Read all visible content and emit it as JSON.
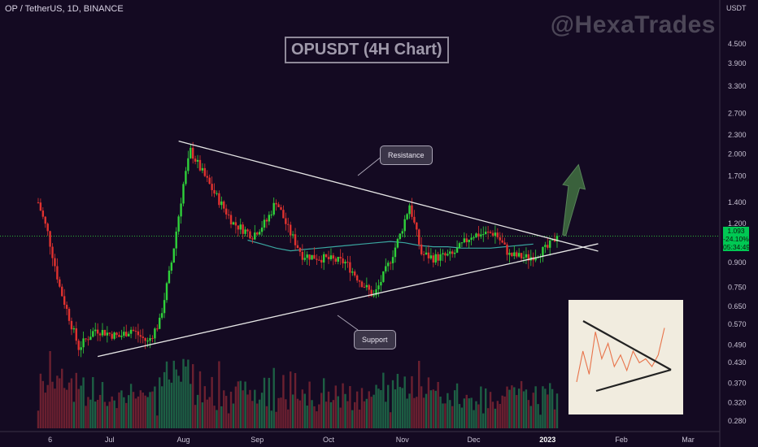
{
  "header": {
    "symbol_line": "OP / TetherUS, 1D, BINANCE"
  },
  "watermark": "@HexaTrades",
  "title": "OPUSDT (4H Chart)",
  "annotations": {
    "resistance": "Resistance",
    "support": "Support"
  },
  "price_badge": {
    "price": "1.093",
    "change": "-24.10%",
    "countdown": "05:34:49"
  },
  "colors": {
    "up": "#2fd13a",
    "down": "#e0322f",
    "ma": "#3aa6a0",
    "trendline": "#e6e6e6",
    "arrow": "#3f6b3f",
    "badge": "#00c853",
    "background": "#140a22"
  },
  "chart_data": {
    "type": "candlestick",
    "y_axis": {
      "currency": "USDT",
      "scale": "log",
      "ticks": [
        "4.500",
        "3.900",
        "3.300",
        "2.700",
        "2.300",
        "2.000",
        "1.700",
        "1.400",
        "1.200",
        "0.900",
        "0.750",
        "0.650",
        "0.570",
        "0.490",
        "0.430",
        "0.370",
        "0.320",
        "0.280"
      ]
    },
    "x_axis": {
      "ticks": [
        "6",
        "Jul",
        "Aug",
        "Sep",
        "Oct",
        "Nov",
        "Dec",
        "2023",
        "Feb",
        "Mar"
      ]
    },
    "last_price": 1.093,
    "price_anchors": [
      {
        "date": "2022-06-01",
        "close": 1.4
      },
      {
        "date": "2022-06-05",
        "close": 1.12
      },
      {
        "date": "2022-06-10",
        "close": 0.75
      },
      {
        "date": "2022-06-18",
        "close": 0.48
      },
      {
        "date": "2022-06-25",
        "close": 0.55
      },
      {
        "date": "2022-07-05",
        "close": 0.52
      },
      {
        "date": "2022-07-10",
        "close": 0.55
      },
      {
        "date": "2022-07-17",
        "close": 0.5
      },
      {
        "date": "2022-07-22",
        "close": 0.58
      },
      {
        "date": "2022-07-27",
        "close": 0.9
      },
      {
        "date": "2022-08-01",
        "close": 1.6
      },
      {
        "date": "2022-08-04",
        "close": 2.05
      },
      {
        "date": "2022-08-08",
        "close": 1.8
      },
      {
        "date": "2022-08-14",
        "close": 1.5
      },
      {
        "date": "2022-08-22",
        "close": 1.2
      },
      {
        "date": "2022-08-30",
        "close": 1.1
      },
      {
        "date": "2022-09-05",
        "close": 1.22
      },
      {
        "date": "2022-09-09",
        "close": 1.42
      },
      {
        "date": "2022-09-14",
        "close": 1.15
      },
      {
        "date": "2022-09-20",
        "close": 0.95
      },
      {
        "date": "2022-09-28",
        "close": 0.93
      },
      {
        "date": "2022-10-08",
        "close": 0.9
      },
      {
        "date": "2022-10-14",
        "close": 0.79
      },
      {
        "date": "2022-10-20",
        "close": 0.7
      },
      {
        "date": "2022-10-26",
        "close": 0.88
      },
      {
        "date": "2022-10-31",
        "close": 1.1
      },
      {
        "date": "2022-11-04",
        "close": 1.38
      },
      {
        "date": "2022-11-09",
        "close": 0.96
      },
      {
        "date": "2022-11-14",
        "close": 0.93
      },
      {
        "date": "2022-11-22",
        "close": 0.95
      },
      {
        "date": "2022-11-30",
        "close": 1.1
      },
      {
        "date": "2022-12-10",
        "close": 1.12
      },
      {
        "date": "2022-12-16",
        "close": 0.95
      },
      {
        "date": "2022-12-24",
        "close": 0.93
      },
      {
        "date": "2023-01-01",
        "close": 1.0
      },
      {
        "date": "2023-01-05",
        "close": 1.093
      }
    ],
    "moving_average": {
      "name": "",
      "start": "2022-08-28",
      "values": [
        1.06,
        1.03,
        1.0,
        0.98,
        0.99,
        1.0,
        1.01,
        1.02,
        1.03,
        1.04,
        1.05,
        1.04,
        1.02,
        1.01,
        1.01,
        1.0,
        1.0,
        1.0,
        1.01,
        1.02,
        1.03
      ]
    },
    "trendlines": [
      {
        "name": "Resistance",
        "from": {
          "date": "2022-07-30",
          "price": 2.2
        },
        "to": {
          "date": "2023-01-12",
          "price": 1.02
        }
      },
      {
        "name": "Support",
        "from": {
          "date": "2022-06-26",
          "price": 0.45
        },
        "to": {
          "date": "2023-01-12",
          "price": 0.99
        }
      }
    ],
    "projection_arrow": {
      "from": {
        "date": "2023-01-08",
        "price": 1.1
      },
      "to": {
        "date": "2023-01-14",
        "price": 1.85
      }
    },
    "inset": {
      "type": "line",
      "description_free": true,
      "values": [
        0.2,
        0.6,
        0.3,
        0.85,
        0.5,
        0.7,
        0.4,
        0.55,
        0.35,
        0.6,
        0.45,
        0.5,
        0.4,
        0.55,
        0.9
      ]
    }
  }
}
